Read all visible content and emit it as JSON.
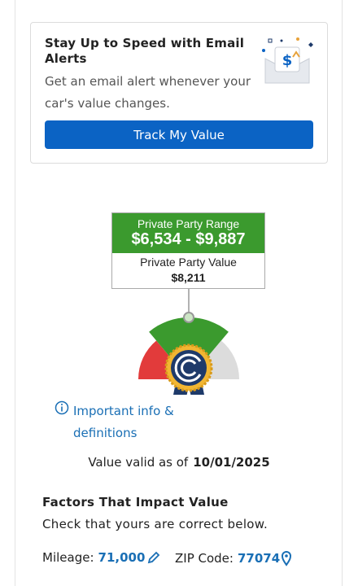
{
  "alert_card": {
    "title": "Stay Up to Speed with Email Alerts",
    "description": "Get an email alert whenever your car's value changes.",
    "button": "Track My Value"
  },
  "valuation": {
    "range_label": "Private Party Range",
    "range_value": "$6,534 - $9,887",
    "value_label": "Private Party Value",
    "value": "$8,211"
  },
  "info_link": "Important info & definitions",
  "valid": {
    "label": "Value valid as of",
    "date": "10/01/2025"
  },
  "factors": {
    "title": "Factors That Impact Value",
    "subtitle": "Check that yours are correct below.",
    "mileage_label": "Mileage:",
    "mileage": "71,000",
    "zip_label": "ZIP Code:",
    "zip": "77074"
  }
}
